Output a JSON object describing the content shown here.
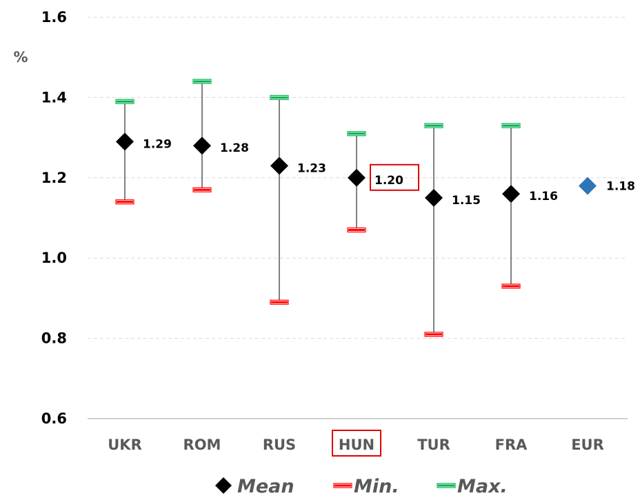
{
  "chart_data": {
    "type": "scatter",
    "title": "",
    "ylabel": "%",
    "xlabel": "",
    "ylim": [
      0.6,
      1.6
    ],
    "yticks": [
      "0.6",
      "0.8",
      "1.0",
      "1.2",
      "1.4",
      "1.6"
    ],
    "grid": true,
    "categories": [
      "UKR",
      "ROM",
      "RUS",
      "HUN",
      "TUR",
      "FRA",
      "EUR"
    ],
    "highlight": "HUN",
    "series": [
      {
        "name": "Mean",
        "color": "#000000",
        "values": [
          1.29,
          1.28,
          1.23,
          1.2,
          1.15,
          1.16,
          null
        ]
      },
      {
        "name": "Min.",
        "color": "#ff0000",
        "values": [
          1.14,
          1.17,
          0.89,
          1.07,
          0.81,
          0.93,
          null
        ]
      },
      {
        "name": "Max.",
        "color": "#00b050",
        "values": [
          1.39,
          1.44,
          1.4,
          1.31,
          1.33,
          1.33,
          null
        ]
      }
    ],
    "eur_mean": {
      "value": 1.18,
      "color": "#2e75b6"
    },
    "data_labels": [
      "1.29",
      "1.28",
      "1.23",
      "1.20",
      "1.15",
      "1.16",
      "1.18"
    ],
    "legend_position": "bottom"
  }
}
